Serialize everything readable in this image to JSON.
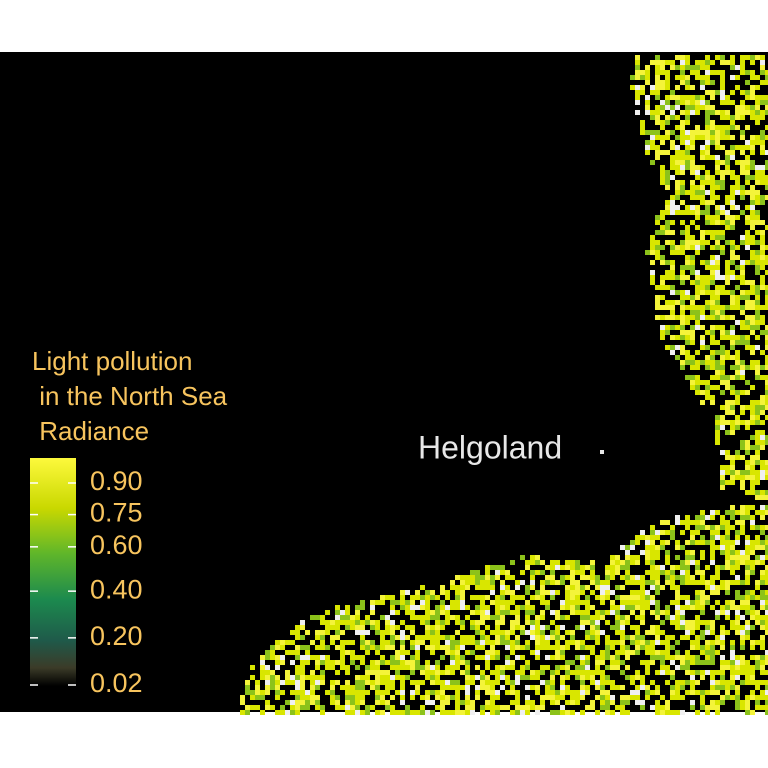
{
  "map": {
    "label": "Helgoland",
    "legend": {
      "title_lines": [
        "Light pollution",
        " in the North Sea",
        " Radiance"
      ],
      "ticks": [
        {
          "value": 0.9,
          "label": "0.90"
        },
        0.75,
        {
          "value": 0.6,
          "label": "0.60"
        },
        {
          "value": 0.4,
          "label": "0.40"
        },
        {
          "value": 0.2,
          "label": "0.20"
        },
        0.02
      ]
    }
  }
}
